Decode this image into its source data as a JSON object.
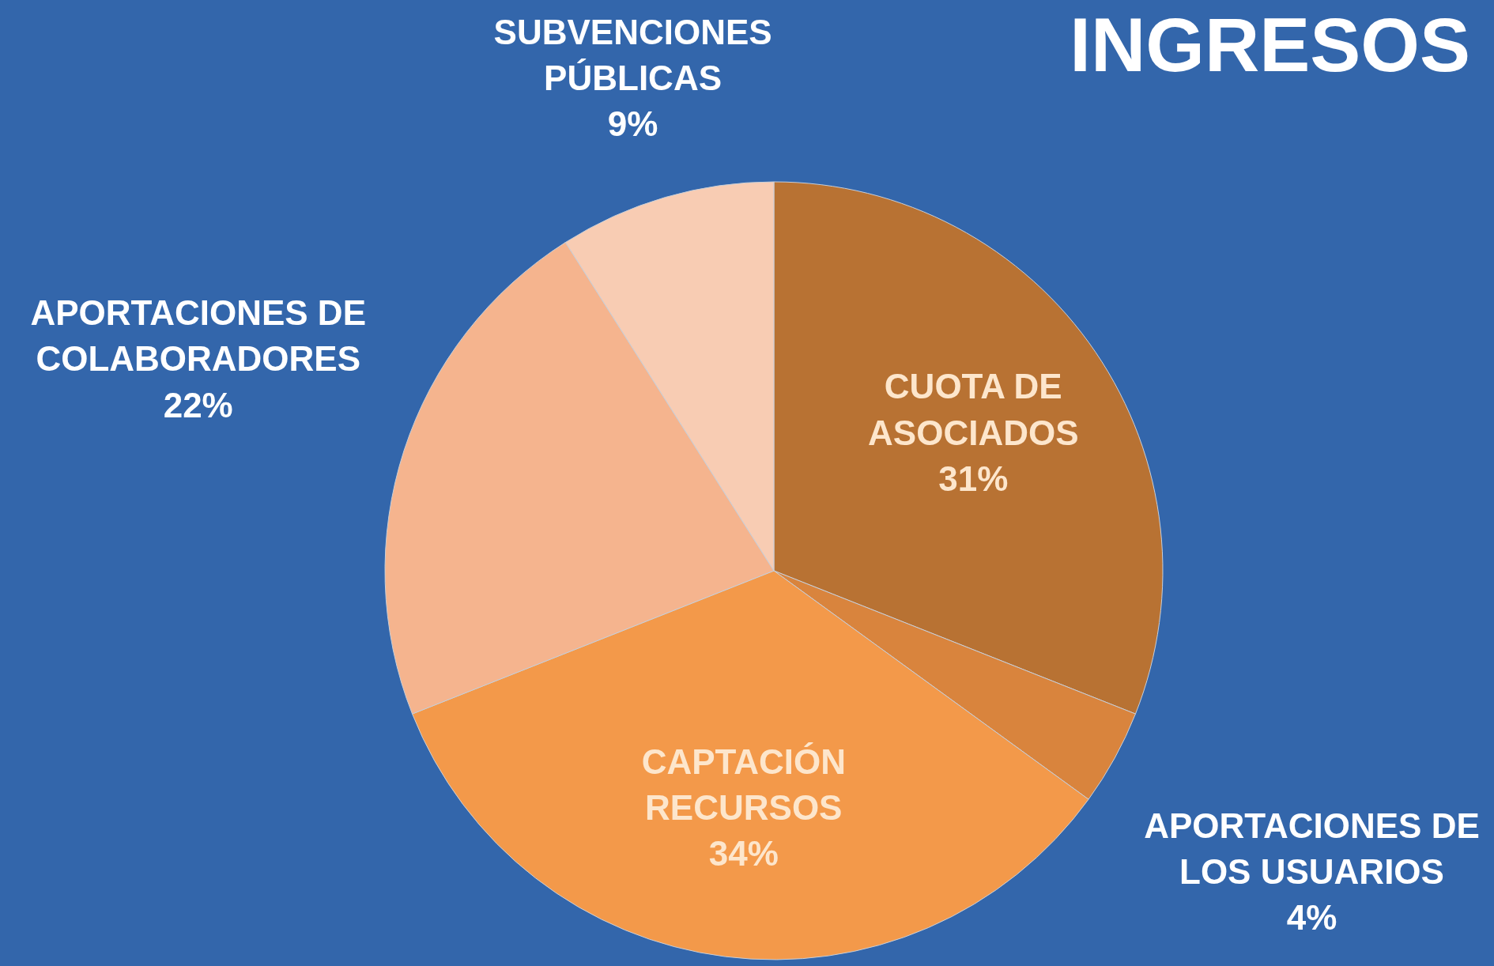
{
  "chart_data": {
    "type": "pie",
    "title": "INGRESOS",
    "categories": [
      "CUOTA DE ASOCIADOS",
      "APORTACIONES DE LOS USUARIOS",
      "CAPTACIÓN RECURSOS",
      "APORTACIONES DE COLABORADORES",
      "SUBVENCIONES PÚBLICAS"
    ],
    "values": [
      31,
      4,
      34,
      22,
      9
    ],
    "value_labels": [
      "31%",
      "4%",
      "34%",
      "22%",
      "9%"
    ],
    "colors": [
      "#b87233",
      "#d9843d",
      "#f3994a",
      "#f5b48e",
      "#f8ccb3"
    ]
  }
}
